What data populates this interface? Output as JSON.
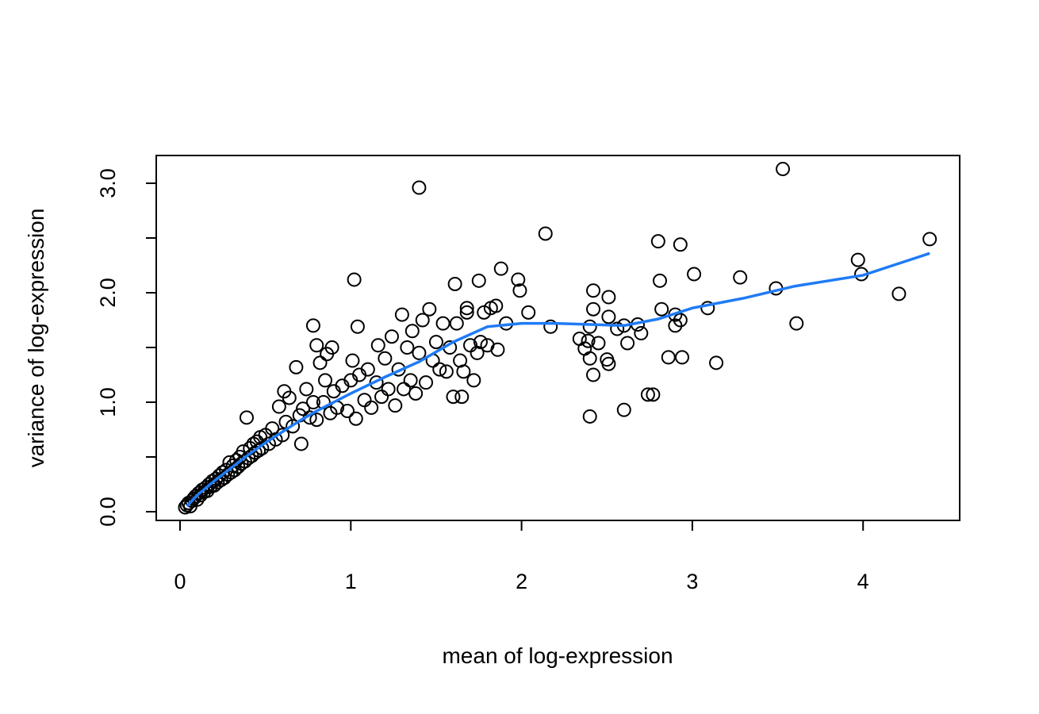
{
  "chart_data": {
    "type": "scatter",
    "title": "",
    "xlabel": "mean of log-expression",
    "ylabel": "variance of log-expression",
    "xlim": [
      -0.14,
      4.56
    ],
    "ylim": [
      -0.08,
      3.25
    ],
    "x_ticks": [
      0,
      1,
      2,
      3,
      4
    ],
    "x_tick_labels": [
      "0",
      "1",
      "2",
      "3",
      "4"
    ],
    "y_ticks": [
      0,
      0.5,
      1,
      1.5,
      2,
      2.5,
      3
    ],
    "y_tick_labels": [
      "0.0",
      "1.0",
      "2.0",
      "3.0"
    ],
    "y_labeled_ticks": [
      0,
      1,
      2,
      3
    ],
    "grid": false,
    "point_color": "#000000",
    "trend_color": "#1f7bf5",
    "points": [
      [
        0.03,
        0.04
      ],
      [
        0.04,
        0.06
      ],
      [
        0.05,
        0.08
      ],
      [
        0.06,
        0.05
      ],
      [
        0.07,
        0.1
      ],
      [
        0.08,
        0.12
      ],
      [
        0.09,
        0.14
      ],
      [
        0.1,
        0.11
      ],
      [
        0.11,
        0.17
      ],
      [
        0.12,
        0.15
      ],
      [
        0.13,
        0.2
      ],
      [
        0.14,
        0.18
      ],
      [
        0.15,
        0.22
      ],
      [
        0.16,
        0.19
      ],
      [
        0.17,
        0.25
      ],
      [
        0.18,
        0.23
      ],
      [
        0.19,
        0.28
      ],
      [
        0.2,
        0.24
      ],
      [
        0.21,
        0.3
      ],
      [
        0.22,
        0.27
      ],
      [
        0.23,
        0.33
      ],
      [
        0.24,
        0.29
      ],
      [
        0.25,
        0.36
      ],
      [
        0.26,
        0.31
      ],
      [
        0.27,
        0.38
      ],
      [
        0.28,
        0.34
      ],
      [
        0.29,
        0.45
      ],
      [
        0.3,
        0.36
      ],
      [
        0.31,
        0.42
      ],
      [
        0.32,
        0.38
      ],
      [
        0.33,
        0.47
      ],
      [
        0.34,
        0.41
      ],
      [
        0.35,
        0.5
      ],
      [
        0.36,
        0.44
      ],
      [
        0.37,
        0.55
      ],
      [
        0.38,
        0.46
      ],
      [
        0.39,
        0.86
      ],
      [
        0.4,
        0.49
      ],
      [
        0.41,
        0.58
      ],
      [
        0.42,
        0.51
      ],
      [
        0.43,
        0.62
      ],
      [
        0.44,
        0.54
      ],
      [
        0.45,
        0.64
      ],
      [
        0.46,
        0.56
      ],
      [
        0.47,
        0.68
      ],
      [
        0.48,
        0.58
      ],
      [
        0.5,
        0.7
      ],
      [
        0.52,
        0.62
      ],
      [
        0.54,
        0.76
      ],
      [
        0.56,
        0.66
      ],
      [
        0.58,
        0.96
      ],
      [
        0.6,
        0.7
      ],
      [
        0.61,
        1.1
      ],
      [
        0.62,
        0.82
      ],
      [
        0.64,
        1.04
      ],
      [
        0.66,
        0.78
      ],
      [
        0.68,
        1.32
      ],
      [
        0.7,
        0.88
      ],
      [
        0.71,
        0.62
      ],
      [
        0.72,
        0.94
      ],
      [
        0.74,
        1.12
      ],
      [
        0.76,
        0.86
      ],
      [
        0.78,
        1.0
      ],
      [
        0.8,
        0.84
      ],
      [
        0.8,
        1.52
      ],
      [
        0.82,
        1.36
      ],
      [
        0.84,
        1.0
      ],
      [
        0.85,
        1.2
      ],
      [
        0.86,
        1.44
      ],
      [
        0.88,
        0.9
      ],
      [
        0.89,
        1.5
      ],
      [
        0.9,
        1.1
      ],
      [
        0.92,
        0.95
      ],
      [
        0.95,
        1.15
      ],
      [
        0.98,
        0.92
      ],
      [
        1.0,
        1.2
      ],
      [
        1.01,
        1.38
      ],
      [
        1.03,
        0.85
      ],
      [
        1.05,
        1.25
      ],
      [
        1.08,
        1.02
      ],
      [
        1.1,
        1.3
      ],
      [
        1.12,
        0.95
      ],
      [
        1.15,
        1.18
      ],
      [
        1.16,
        1.52
      ],
      [
        1.18,
        1.05
      ],
      [
        1.2,
        1.4
      ],
      [
        1.22,
        1.12
      ],
      [
        1.24,
        1.6
      ],
      [
        1.26,
        0.97
      ],
      [
        1.28,
        1.3
      ],
      [
        1.3,
        1.8
      ],
      [
        1.31,
        1.12
      ],
      [
        1.33,
        1.5
      ],
      [
        1.35,
        1.2
      ],
      [
        1.36,
        1.65
      ],
      [
        1.38,
        1.08
      ],
      [
        1.4,
        1.45
      ],
      [
        1.42,
        1.75
      ],
      [
        1.44,
        1.18
      ],
      [
        1.46,
        1.85
      ],
      [
        1.48,
        1.38
      ],
      [
        1.5,
        1.55
      ],
      [
        1.52,
        1.3
      ],
      [
        1.54,
        1.72
      ],
      [
        1.56,
        1.28
      ],
      [
        1.58,
        1.5
      ],
      [
        1.6,
        1.05
      ],
      [
        1.62,
        1.72
      ],
      [
        1.64,
        1.38
      ],
      [
        1.65,
        1.05
      ],
      [
        1.66,
        1.28
      ],
      [
        1.68,
        1.82
      ],
      [
        1.7,
        1.52
      ],
      [
        1.72,
        1.2
      ],
      [
        1.74,
        1.45
      ],
      [
        1.76,
        1.55
      ],
      [
        1.78,
        1.82
      ],
      [
        1.8,
        1.52
      ],
      [
        1.82,
        1.86
      ],
      [
        1.86,
        1.48
      ],
      [
        1.4,
        2.96
      ],
      [
        3.53,
        3.13
      ],
      [
        2.14,
        2.54
      ],
      [
        2.8,
        2.47
      ],
      [
        2.93,
        2.44
      ],
      [
        4.39,
        2.49
      ],
      [
        3.97,
        2.3
      ],
      [
        3.99,
        2.17
      ],
      [
        4.21,
        1.99
      ],
      [
        3.49,
        2.04
      ],
      [
        3.28,
        2.14
      ],
      [
        3.01,
        2.17
      ],
      [
        2.81,
        2.11
      ],
      [
        2.42,
        2.02
      ],
      [
        2.51,
        1.96
      ],
      [
        3.61,
        1.72
      ],
      [
        3.09,
        1.86
      ],
      [
        2.82,
        1.85
      ],
      [
        2.9,
        1.8
      ],
      [
        2.93,
        1.75
      ],
      [
        2.9,
        1.7
      ],
      [
        2.42,
        1.85
      ],
      [
        2.51,
        1.78
      ],
      [
        2.6,
        1.7
      ],
      [
        2.68,
        1.71
      ],
      [
        2.56,
        1.67
      ],
      [
        2.7,
        1.63
      ],
      [
        2.62,
        1.54
      ],
      [
        2.4,
        1.69
      ],
      [
        2.34,
        1.58
      ],
      [
        2.39,
        1.56
      ],
      [
        2.45,
        1.54
      ],
      [
        2.37,
        1.49
      ],
      [
        2.4,
        1.4
      ],
      [
        2.5,
        1.39
      ],
      [
        2.51,
        1.35
      ],
      [
        2.42,
        1.25
      ],
      [
        2.86,
        1.41
      ],
      [
        2.94,
        1.41
      ],
      [
        3.14,
        1.36
      ],
      [
        2.4,
        0.87
      ],
      [
        2.6,
        0.93
      ],
      [
        2.74,
        1.07
      ],
      [
        2.77,
        1.07
      ],
      [
        2.17,
        1.69
      ],
      [
        2.04,
        1.82
      ],
      [
        1.99,
        2.02
      ],
      [
        1.98,
        2.12
      ],
      [
        1.88,
        2.22
      ],
      [
        1.75,
        2.11
      ],
      [
        1.61,
        2.08
      ],
      [
        1.02,
        2.12
      ],
      [
        0.78,
        1.7
      ],
      [
        1.04,
        1.69
      ],
      [
        1.91,
        1.72
      ],
      [
        1.85,
        1.88
      ],
      [
        1.68,
        1.86
      ]
    ],
    "trend": [
      [
        0.04,
        0.05
      ],
      [
        0.1,
        0.15
      ],
      [
        0.2,
        0.28
      ],
      [
        0.3,
        0.4
      ],
      [
        0.4,
        0.52
      ],
      [
        0.5,
        0.63
      ],
      [
        0.6,
        0.73
      ],
      [
        0.7,
        0.83
      ],
      [
        0.8,
        0.92
      ],
      [
        1.0,
        1.08
      ],
      [
        1.2,
        1.23
      ],
      [
        1.4,
        1.37
      ],
      [
        1.6,
        1.55
      ],
      [
        1.8,
        1.69
      ],
      [
        2.0,
        1.72
      ],
      [
        2.2,
        1.72
      ],
      [
        2.4,
        1.71
      ],
      [
        2.6,
        1.7
      ],
      [
        2.8,
        1.76
      ],
      [
        3.0,
        1.86
      ],
      [
        3.3,
        1.95
      ],
      [
        3.6,
        2.06
      ],
      [
        4.0,
        2.16
      ],
      [
        4.39,
        2.36
      ]
    ]
  }
}
